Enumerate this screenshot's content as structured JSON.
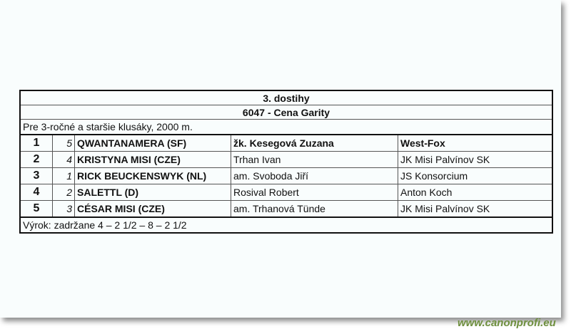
{
  "title": "3. dostihy",
  "race": "6047 - Cena Garity",
  "description": "Pre 3-ročné a staršie klusáky, 2000 m.",
  "results": [
    {
      "place": "1",
      "number": "5",
      "horse": "QWANTANAMERA (SF)",
      "driver": "žk. Kesegová Zuzana",
      "owner": "West-Fox",
      "bold": true
    },
    {
      "place": "2",
      "number": "4",
      "horse": "KRISTYNA MISI (CZE)",
      "driver": "Trhan Ivan",
      "owner": "JK Misi Palvínov SK"
    },
    {
      "place": "3",
      "number": "1",
      "horse": "RICK BEUCKENSWYK (NL)",
      "driver": "am. Svoboda Jiří",
      "owner": "JS Konsorcium"
    },
    {
      "place": "4",
      "number": "2",
      "horse": "SALETTL (D)",
      "driver": "Rosival Robert",
      "owner": "Anton Koch"
    },
    {
      "place": "5",
      "number": "3",
      "horse": "CÉSAR MISI (CZE)",
      "driver": "am. Trhanová Tünde",
      "owner": "JK Misi Palvínov SK"
    }
  ],
  "verdict": "Výrok: zadržane 4 – 2 1/2 – 8 – 2 1/2",
  "watermark": "www.canonprofi.eu"
}
